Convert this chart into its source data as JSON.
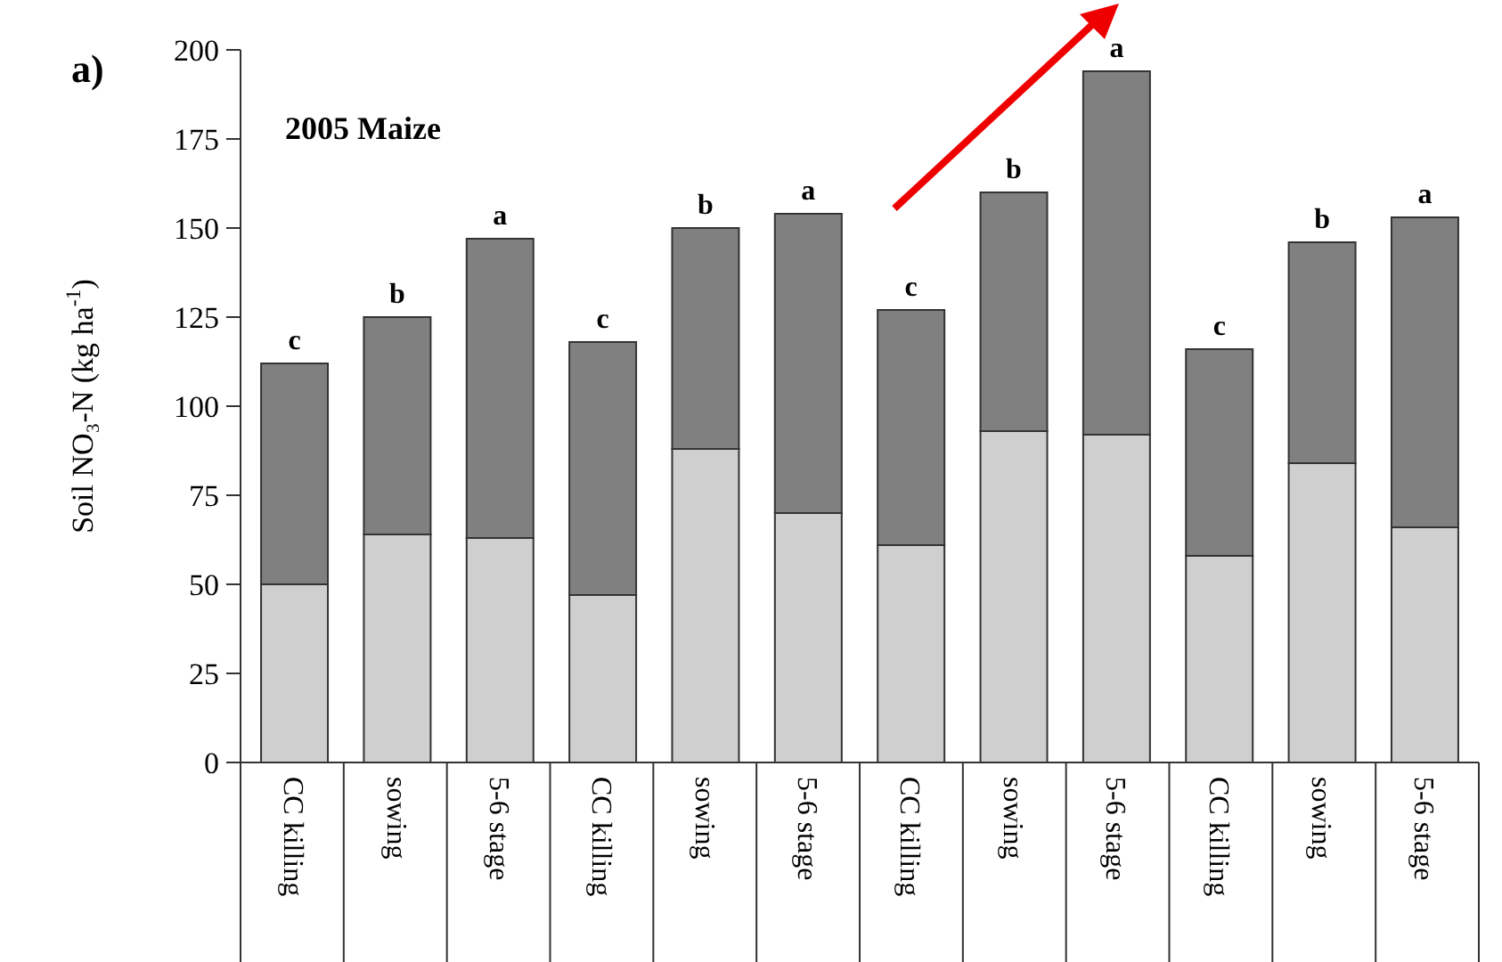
{
  "chart_data": {
    "type": "bar",
    "title": "2005 Maize",
    "ylabel": "Soil NO₃-N (kg ha$^{-1}$)",
    "stacked": true,
    "categories": [
      "CC killing",
      "sowing",
      "5-6 stage",
      "CC killing",
      "sowing",
      "5-6 stage",
      "CC killing",
      "sowing",
      "5-6 stage",
      "CC killing",
      "sowing",
      "5-6 stage"
    ],
    "series": [
      {
        "color": "#cfcfcf",
        "values": [
          50,
          64,
          63,
          47,
          88,
          70,
          61,
          93,
          92,
          58,
          84,
          66
        ]
      },
      {
        "color": "#808080",
        "values": [
          62,
          61,
          84,
          71,
          62,
          84,
          66,
          67,
          102,
          58,
          62,
          87
        ]
      }
    ],
    "ylim": [
      0,
      200
    ],
    "yticks": [
      0,
      25,
      50,
      75,
      100,
      125,
      150,
      175,
      200
    ],
    "grid": false,
    "annotations": [
      "a)",
      "c",
      "b",
      "a",
      "c",
      "b",
      "a",
      "c",
      "b",
      "a",
      "c",
      "b",
      "a"
    ]
  }
}
